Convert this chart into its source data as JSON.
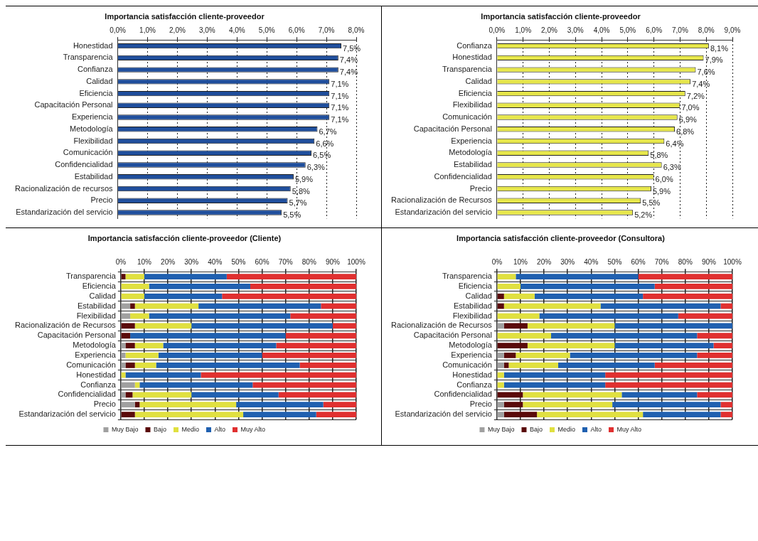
{
  "chart_data": [
    {
      "type": "bar",
      "orientation": "horizontal",
      "title": "Importancia satisfacción cliente-proveedor",
      "categories": [
        "Honestidad",
        "Transparencia",
        "Confianza",
        "Calidad",
        "Eficiencia",
        "Capacitación Personal",
        "Experiencia",
        "Metodología",
        "Flexibilidad",
        "Comunicación",
        "Confidencialidad",
        "Estabilidad",
        "Racionalización de recursos",
        "Precio",
        "Estandarización del servicio"
      ],
      "values": [
        7.5,
        7.4,
        7.4,
        7.1,
        7.1,
        7.1,
        7.1,
        6.7,
        6.6,
        6.5,
        6.3,
        5.9,
        5.8,
        5.7,
        5.5
      ],
      "value_labels": [
        "7,5%",
        "7,4%",
        "7,4%",
        "7,1%",
        "7,1%",
        "7,1%",
        "7,1%",
        "6,7%",
        "6,6%",
        "6,5%",
        "6,3%",
        "5,9%",
        "5,8%",
        "5,7%",
        "5,5%"
      ],
      "color": "#1f4e9c",
      "xlim": [
        0,
        8
      ],
      "xticks": [
        {
          "value": 0,
          "label": "0,0%"
        },
        {
          "value": 1,
          "label": "1,0%"
        },
        {
          "value": 2,
          "label": "2,0%"
        },
        {
          "value": 3,
          "label": "3,0%"
        },
        {
          "value": 4,
          "label": "4,0%"
        },
        {
          "value": 5,
          "label": "5,0%"
        },
        {
          "value": 6,
          "label": "6,0%"
        },
        {
          "value": 7,
          "label": "7,0%"
        },
        {
          "value": 8,
          "label": "8,0%"
        }
      ],
      "grid": "x",
      "legend": false
    },
    {
      "type": "bar",
      "orientation": "horizontal",
      "title": "Importancia satisfacción cliente-proveedor",
      "categories": [
        "Confianza",
        "Honestidad",
        "Transparencia",
        "Calidad",
        "Eficiencia",
        "Flexibilidad",
        "Comunicación",
        "Capacitación Personal",
        "Experiencia",
        "Metodología",
        "Estabilidad",
        "Confidencialidad",
        "Precio",
        "Racionalización de Recursos",
        "Estandarización del servicio"
      ],
      "values": [
        8.1,
        7.9,
        7.6,
        7.4,
        7.2,
        7.0,
        6.9,
        6.8,
        6.4,
        5.8,
        6.3,
        6.0,
        5.9,
        5.5,
        5.2
      ],
      "value_labels": [
        "8,1%",
        "7,9%",
        "7,6%",
        "7,4%",
        "7,2%",
        "7,0%",
        "6,9%",
        "6,8%",
        "6,4%",
        "5,8%",
        "6,3%",
        "6,0%",
        "5,9%",
        "5,5%",
        "5,2%"
      ],
      "color": "#e6e64a",
      "xlim": [
        0,
        9
      ],
      "xticks": [
        {
          "value": 0,
          "label": "0,0%"
        },
        {
          "value": 1,
          "label": "1,0%"
        },
        {
          "value": 2,
          "label": "2,0%"
        },
        {
          "value": 3,
          "label": "3,0%"
        },
        {
          "value": 4,
          "label": "4,0%"
        },
        {
          "value": 5,
          "label": "5,0%"
        },
        {
          "value": 6,
          "label": "6,0%"
        },
        {
          "value": 7,
          "label": "7,0%"
        },
        {
          "value": 8,
          "label": "8,0%"
        },
        {
          "value": 9,
          "label": "9,0%"
        }
      ],
      "grid": "x",
      "legend": false
    },
    {
      "type": "bar",
      "orientation": "horizontal",
      "stacked": true,
      "title": "Importancia satisfacción cliente-proveedor (Cliente)",
      "categories": [
        "Transparencia",
        "Eficiencia",
        "Calidad",
        "Estabilidad",
        "Flexibilidad",
        "Racionalización de Recursos",
        "Capacitación Personal",
        "Metodología",
        "Experiencia",
        "Comunicación",
        "Honestidad",
        "Confianza",
        "Confidencialidad",
        "Precio",
        "Estandarización del servicio"
      ],
      "series": [
        {
          "name": "Muy Bajo",
          "color": "#a0a0a0",
          "values": [
            0,
            0,
            0,
            4,
            4,
            0,
            0,
            2,
            2,
            2,
            0,
            6,
            2,
            6,
            0
          ]
        },
        {
          "name": "Bajo",
          "color": "#5a0a0a",
          "values": [
            2,
            0,
            0,
            2,
            0,
            6,
            4,
            4,
            0,
            4,
            0,
            0,
            3,
            2,
            6
          ]
        },
        {
          "name": "Medio",
          "color": "#e0e040",
          "values": [
            8,
            12,
            10,
            27,
            8,
            24,
            0,
            12,
            14,
            9,
            2,
            2,
            25,
            41,
            46
          ]
        },
        {
          "name": "Alto",
          "color": "#2060b0",
          "values": [
            35,
            43,
            33,
            52,
            60,
            60,
            66,
            48,
            44,
            61,
            32,
            48,
            37,
            37,
            31
          ]
        },
        {
          "name": "Muy Alto",
          "color": "#e03030",
          "values": [
            55,
            45,
            57,
            15,
            28,
            10,
            30,
            34,
            40,
            24,
            66,
            44,
            33,
            14,
            17
          ]
        }
      ],
      "xlim": [
        0,
        100
      ],
      "xticks": [
        {
          "value": 0,
          "label": "0%"
        },
        {
          "value": 10,
          "label": "10%"
        },
        {
          "value": 20,
          "label": "20%"
        },
        {
          "value": 30,
          "label": "30%"
        },
        {
          "value": 40,
          "label": "40%"
        },
        {
          "value": 50,
          "label": "50%"
        },
        {
          "value": 60,
          "label": "60%"
        },
        {
          "value": 70,
          "label": "70%"
        },
        {
          "value": 80,
          "label": "80%"
        },
        {
          "value": 90,
          "label": "90%"
        },
        {
          "value": 100,
          "label": "100%"
        }
      ],
      "grid": true,
      "legend": "bottom"
    },
    {
      "type": "bar",
      "orientation": "horizontal",
      "stacked": true,
      "title": "Importancia satisfacción cliente-proveedor (Consultora)",
      "categories": [
        "Transparencia",
        "Eficiencia",
        "Calidad",
        "Estabilidad",
        "Flexibilidad",
        "Racionalización de Recursos",
        "Capacitación Personal",
        "Metodología",
        "Experiencia",
        "Comunicación",
        "Honestidad",
        "Confianza",
        "Confidencialidad",
        "Precio",
        "Estandarización del servicio"
      ],
      "series": [
        {
          "name": "Muy Bajo",
          "color": "#a0a0a0",
          "values": [
            0,
            0,
            0,
            0,
            0,
            3,
            0,
            0,
            3,
            3,
            0,
            0,
            0,
            3,
            3
          ]
        },
        {
          "name": "Bajo",
          "color": "#5a0a0a",
          "values": [
            0,
            0,
            3,
            3,
            0,
            10,
            0,
            13,
            5,
            2,
            0,
            0,
            11,
            8,
            14
          ]
        },
        {
          "name": "Medio",
          "color": "#e0e040",
          "values": [
            8,
            10,
            13,
            41,
            18,
            37,
            23,
            37,
            23,
            21,
            3,
            3,
            42,
            38,
            45
          ]
        },
        {
          "name": "Alto",
          "color": "#2060b0",
          "values": [
            52,
            57,
            46,
            51,
            59,
            50,
            62,
            42,
            54,
            41,
            43,
            43,
            32,
            46,
            33
          ]
        },
        {
          "name": "Muy Alto",
          "color": "#e03030",
          "values": [
            40,
            33,
            38,
            5,
            23,
            0,
            15,
            8,
            15,
            33,
            54,
            54,
            15,
            5,
            5
          ]
        }
      ],
      "xlim": [
        0,
        100
      ],
      "xticks": [
        {
          "value": 0,
          "label": "0%"
        },
        {
          "value": 10,
          "label": "10%"
        },
        {
          "value": 20,
          "label": "20%"
        },
        {
          "value": 30,
          "label": "30%"
        },
        {
          "value": 40,
          "label": "40%"
        },
        {
          "value": 50,
          "label": "50%"
        },
        {
          "value": 60,
          "label": "60%"
        },
        {
          "value": 70,
          "label": "70%"
        },
        {
          "value": 80,
          "label": "80%"
        },
        {
          "value": 90,
          "label": "90%"
        },
        {
          "value": 100,
          "label": "100%"
        }
      ],
      "grid": true,
      "legend": "bottom"
    }
  ]
}
